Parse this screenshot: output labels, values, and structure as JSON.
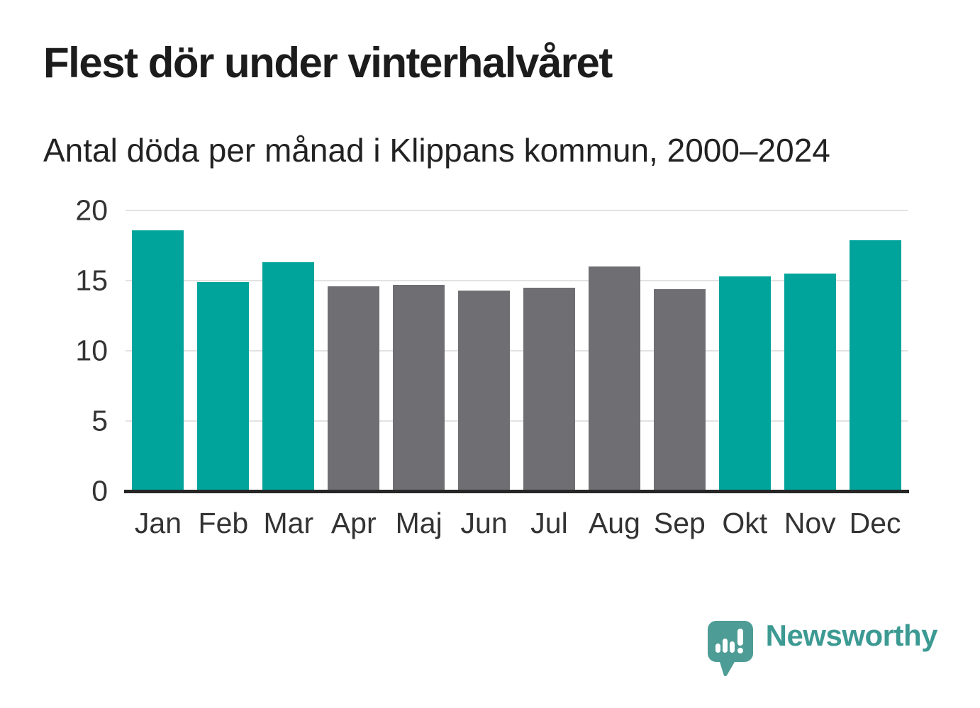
{
  "title": "Flest dör under vinterhalvåret",
  "subtitle": "Antal döda per månad i Klippans kommun, 2000–2024",
  "chart_data": {
    "type": "bar",
    "title": "Flest dör under vinterhalvåret",
    "subtitle": "Antal döda per månad i Klippans kommun, 2000–2024",
    "categories": [
      "Jan",
      "Feb",
      "Mar",
      "Apr",
      "Maj",
      "Jun",
      "Jul",
      "Aug",
      "Sep",
      "Okt",
      "Nov",
      "Dec"
    ],
    "values": [
      18.6,
      14.9,
      16.3,
      14.6,
      14.7,
      14.3,
      14.5,
      16.0,
      14.4,
      15.3,
      15.5,
      17.9
    ],
    "highlighted": [
      true,
      true,
      true,
      false,
      false,
      false,
      false,
      false,
      false,
      true,
      true,
      true
    ],
    "xlabel": "",
    "ylabel": "",
    "ylim": [
      0,
      20
    ],
    "y_ticks": [
      0,
      5,
      10,
      15,
      20
    ],
    "grid": "horizontal",
    "legend": "none",
    "colors": {
      "highlight": "#00a49b",
      "default": "#6f6e73",
      "grid": "#e2e2e2",
      "axis": "#262626",
      "tick_text": "#333333"
    }
  },
  "branding": {
    "logo_text": "Newsworthy",
    "logo_text_color": "#3c9a93",
    "logo_bubble_color": "#4d9c95"
  }
}
